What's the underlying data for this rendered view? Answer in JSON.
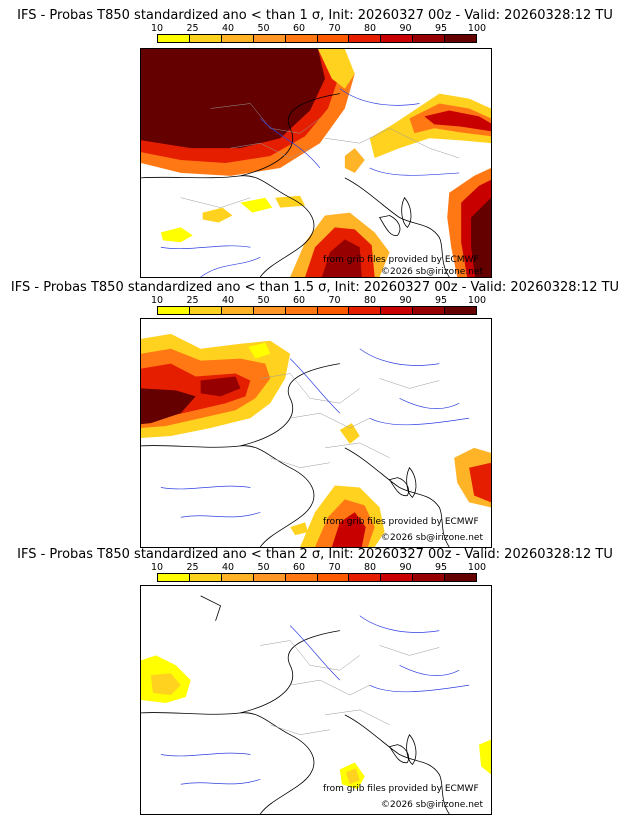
{
  "legend": {
    "ticks": [
      "10",
      "25",
      "40",
      "50",
      "60",
      "70",
      "80",
      "90",
      "95",
      "100"
    ],
    "colors": [
      "#ffff00",
      "#ffd21f",
      "#ffb428",
      "#ff9628",
      "#ff7814",
      "#ff5a00",
      "#e61e00",
      "#c80000",
      "#960000",
      "#640000"
    ]
  },
  "panels": [
    {
      "title": "IFS - Probas T850  standardized ano < than 1 σ, Init: 20260327 00z - Valid: 20260328:12 TU",
      "credit_source": "from grib files provided by ECMWF",
      "credit_copyright": "©2026 sb@irizone.net"
    },
    {
      "title": "IFS - Probas T850  standardized ano < than 1.5 σ, Init: 20260327 00z - Valid: 20260328:12 TU",
      "credit_source": "from grib files provided by ECMWF",
      "credit_copyright": "©2026 sb@irizone.net"
    },
    {
      "title": "IFS - Probas T850  standardized ano < than 2 σ, Init: 20260327 00z - Valid: 20260328:12 TU",
      "credit_source": "from grib files provided by ECMWF",
      "credit_copyright": "©2026 sb@irizone.net"
    }
  ]
}
